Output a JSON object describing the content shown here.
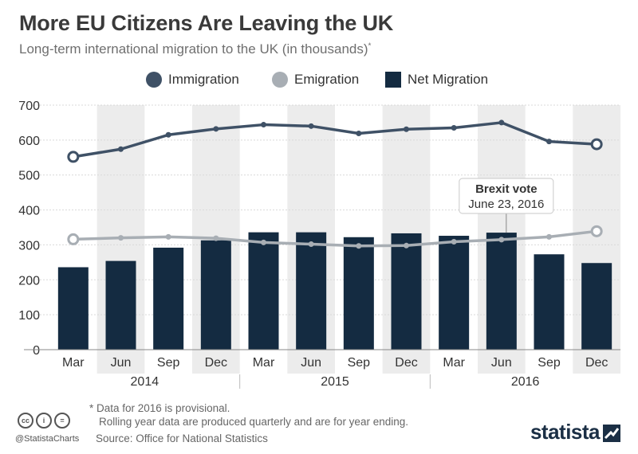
{
  "title": "More EU Citizens Are Leaving the UK",
  "subtitle": "Long-term international migration to the UK (in thousands)",
  "subtitle_marker": "*",
  "colors": {
    "immigration": "#3f5166",
    "emigration": "#a8aeb4",
    "net_migration": "#142b41",
    "band": "#ececec",
    "axis_text": "#333333"
  },
  "chart_data": {
    "type": "bar",
    "categories": [
      "Mar",
      "Jun",
      "Sep",
      "Dec",
      "Mar",
      "Jun",
      "Sep",
      "Dec",
      "Mar",
      "Jun",
      "Sep",
      "Dec"
    ],
    "year_groups": [
      {
        "label": "2014",
        "count": 4
      },
      {
        "label": "2015",
        "count": 4
      },
      {
        "label": "2016",
        "count": 4
      }
    ],
    "series": [
      {
        "name": "Immigration",
        "kind": "line",
        "values": [
          552,
          574,
          615,
          632,
          644,
          640,
          619,
          631,
          635,
          650,
          596,
          588
        ]
      },
      {
        "name": "Emigration",
        "kind": "line",
        "values": [
          316,
          320,
          323,
          319,
          307,
          302,
          297,
          298,
          309,
          315,
          323,
          339
        ]
      },
      {
        "name": "Net Migration",
        "kind": "bar",
        "values": [
          236,
          254,
          292,
          313,
          336,
          336,
          322,
          333,
          326,
          335,
          273,
          248
        ]
      }
    ],
    "ylim": [
      0,
      700
    ],
    "yticks": [
      0,
      100,
      200,
      300,
      400,
      500,
      600,
      700
    ],
    "grid": true,
    "legend_position": "top",
    "annotation": {
      "title": "Brexit vote",
      "text": "June 23, 2016",
      "category_index": 9
    }
  },
  "footnote": [
    "* Data for 2016 is provisional.",
    "Rolling year data are produced quarterly and are for year ending."
  ],
  "source": "Source: Office for National Statistics",
  "handle": "@StatistaCharts",
  "brand": "statista",
  "cc_icons": [
    "cc",
    "i",
    "="
  ]
}
